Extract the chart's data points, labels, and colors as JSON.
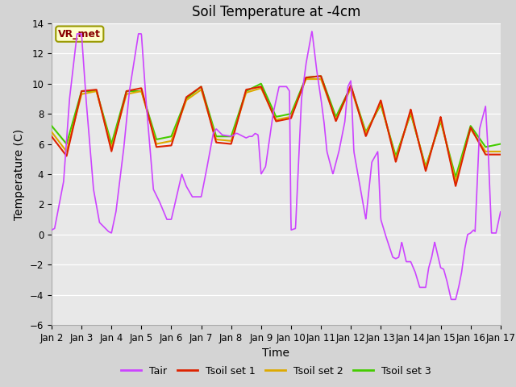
{
  "title": "Soil Temperature at -4cm",
  "xlabel": "Time",
  "ylabel": "Temperature (C)",
  "ylim": [
    -6,
    14
  ],
  "yticks": [
    -6,
    -4,
    -2,
    0,
    2,
    4,
    6,
    8,
    10,
    12,
    14
  ],
  "xtick_labels": [
    "Jan 2",
    "Jan 3",
    "Jan 4",
    "Jan 5",
    "Jan 6",
    "Jan 7",
    "Jan 8",
    "Jan 9",
    "Jan 10",
    "Jan 11",
    "Jan 12",
    "Jan 13",
    "Jan 14",
    "Jan 15",
    "Jan 16",
    "Jan 17"
  ],
  "colors": {
    "Tair": "#cc44ff",
    "Tsoil1": "#dd2200",
    "Tsoil2": "#ddaa00",
    "Tsoil3": "#44cc00"
  },
  "legend_labels": [
    "Tair",
    "Tsoil set 1",
    "Tsoil set 2",
    "Tsoil set 3"
  ],
  "background_color": "#e8e8e8",
  "annotation_text": "VR_met",
  "annotation_box_color": "#ffffcc",
  "annotation_border_color": "#999900",
  "grid_color": "#ffffff",
  "title_fontsize": 12,
  "axis_label_fontsize": 10,
  "tick_label_fontsize": 8.5,
  "fig_bg": "#d4d4d4"
}
